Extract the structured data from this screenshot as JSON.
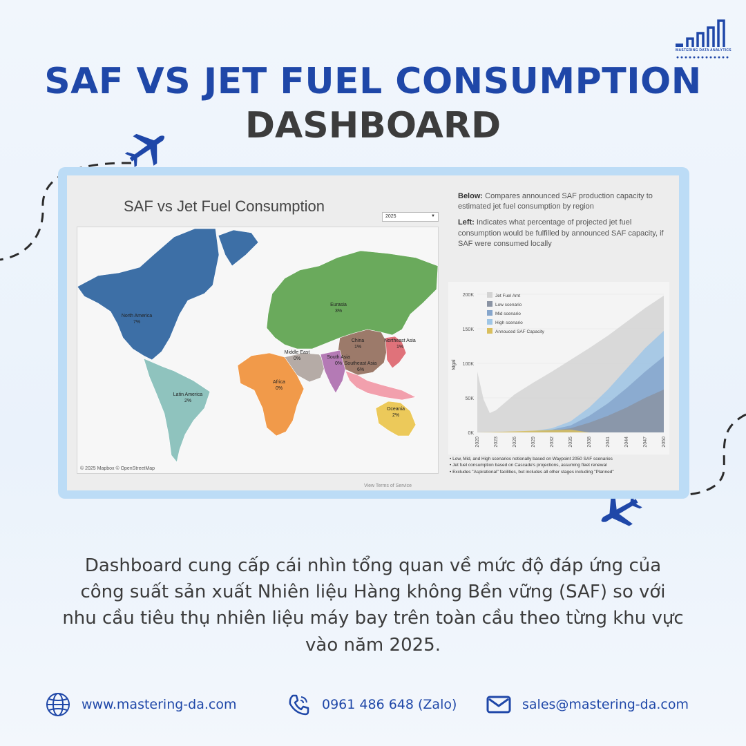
{
  "page": {
    "title_line1": "SAF VS JET FUEL CONSUMPTION",
    "title_line2": "DASHBOARD",
    "logo_text": "MASTERING DATA ANALYTICS",
    "body": "Dashboard cung cấp cái nhìn tổng quan về mức độ đáp ứng của công suất sản xuất Nhiên liệu Hàng không Bền vững (SAF) so với nhu cầu tiêu thụ nhiên liệu máy bay trên toàn cầu theo từng khu vực vào năm 2025.",
    "accent": "#1f47a8",
    "frame_color": "#bcdcf6"
  },
  "contacts": {
    "website": "www.mastering-da.com",
    "phone": "0961 486 648 (Zalo)",
    "email": "sales@mastering-da.com"
  },
  "dashboard": {
    "title": "SAF vs Jet Fuel Consumption",
    "year_selected": "2025",
    "map_attribution": "© 2025 Mapbox  © OpenStreetMap",
    "terms": "View Terms of Service",
    "desc_below_label": "Below:",
    "desc_below": " Compares announced SAF production capacity to estimated jet fuel consumption by region",
    "desc_left_label": "Left:",
    "desc_left": " Indicates what percentage of projected jet fuel consumption would be fulfilled by announced SAF capacity, if SAF were consumed locally",
    "notes": [
      "Low, Mid, and High scenarios notionally based on Waypoint 2050 SAF scenarios",
      "Jet fuel consumption based on Cascade's projections, assuming fleet renewal",
      "Excludes \"Aspirational\" facilities, but includes all other stages including \"Planned\""
    ],
    "regions": [
      {
        "name": "North America",
        "pct": "7%",
        "color": "#3d6fa6"
      },
      {
        "name": "Eurasia",
        "pct": "3%",
        "color": "#6aaa5c"
      },
      {
        "name": "Middle East",
        "pct": "0%",
        "color": "#b5aba6"
      },
      {
        "name": "China",
        "pct": "1%",
        "color": "#9c7a6a"
      },
      {
        "name": "Northeast Asia",
        "pct": "1%",
        "color": "#e0727a"
      },
      {
        "name": "South Asia",
        "pct": "0%",
        "color": "#b47ab5"
      },
      {
        "name": "Southeast Asia",
        "pct": "6%",
        "color": "#f2a0ad"
      },
      {
        "name": "Africa",
        "pct": "0%",
        "color": "#f19a4a"
      },
      {
        "name": "Latin America",
        "pct": "2%",
        "color": "#8fc3be"
      },
      {
        "name": "Oceania",
        "pct": "2%",
        "color": "#ecc95a"
      }
    ]
  },
  "chart_data": {
    "type": "area",
    "ylabel": "Mgal",
    "y_ticks": [
      "0K",
      "50K",
      "100K",
      "150K",
      "200K"
    ],
    "ylim": [
      0,
      200000
    ],
    "x_ticks": [
      "2020",
      "2023",
      "2026",
      "2029",
      "2032",
      "2035",
      "2038",
      "2041",
      "2044",
      "2047",
      "2050"
    ],
    "legend_position": "top-left",
    "x": [
      2020,
      2021,
      2022,
      2023,
      2026,
      2029,
      2032,
      2035,
      2038,
      2041,
      2044,
      2047,
      2050
    ],
    "series": [
      {
        "name": "Jet Fuel Amt",
        "color": "#d3d3d3",
        "values": [
          88000,
          48000,
          28000,
          32000,
          55000,
          72000,
          88000,
          105000,
          122000,
          140000,
          160000,
          180000,
          198000
        ]
      },
      {
        "name": "High scenario",
        "color": "#9fc6e6",
        "values": [
          0,
          0,
          0,
          0,
          0,
          2000,
          6000,
          16000,
          36000,
          62000,
          92000,
          122000,
          147000
        ]
      },
      {
        "name": "Mid scenario",
        "color": "#86a6cc",
        "values": [
          0,
          0,
          0,
          0,
          0,
          1000,
          4000,
          10000,
          24000,
          42000,
          64000,
          88000,
          110000
        ]
      },
      {
        "name": "Low scenario",
        "color": "#8a93a3",
        "values": [
          0,
          0,
          0,
          0,
          0,
          500,
          2500,
          6000,
          14000,
          24000,
          36000,
          50000,
          62000
        ]
      },
      {
        "name": "Annouced SAF Capacity",
        "color": "#d9bf5e",
        "values": [
          0,
          200,
          400,
          800,
          1500,
          2500,
          3500,
          4000,
          0,
          0,
          0,
          0,
          0
        ]
      }
    ]
  }
}
